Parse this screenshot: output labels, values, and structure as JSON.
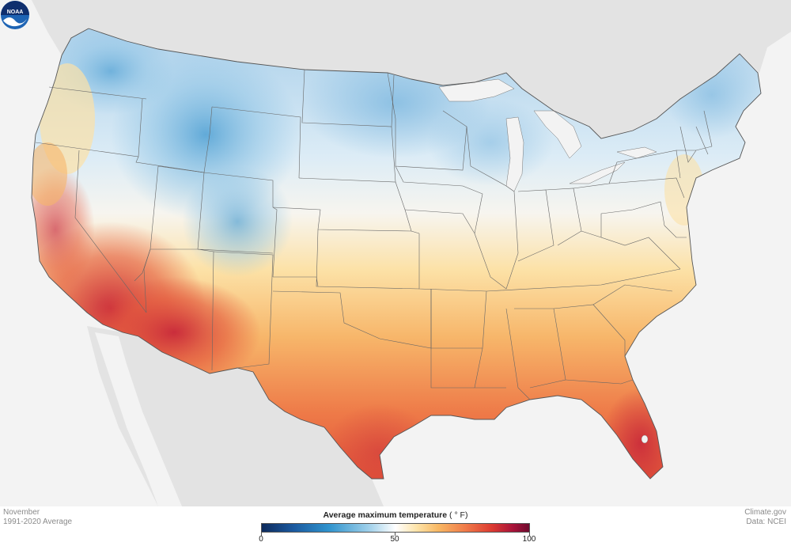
{
  "map": {
    "period_month": "November",
    "period_range": "1991-2020 Average",
    "credit_site": "Climate.gov",
    "credit_data": "Data: NCEI",
    "logo_text": "NOAA"
  },
  "legend": {
    "title": "Average maximum temperature",
    "unit": "( ° F)",
    "min": 0,
    "max": 100,
    "ticks": [
      "0",
      "50",
      "100"
    ],
    "colors": [
      "#0d2a5c",
      "#2f93cd",
      "#ffffff",
      "#f8b864",
      "#dc3b32",
      "#6e0b2e"
    ]
  },
  "colors": {
    "land_outside": "#e3e3e3",
    "water": "#f3f3f3",
    "cold": "#7fb9df",
    "cool": "#d8e9f4",
    "neutral": "#f6f4ee",
    "mild": "#fbd99a",
    "warm": "#f5a463",
    "hot": "#e8603d",
    "hottest": "#c82a35"
  }
}
